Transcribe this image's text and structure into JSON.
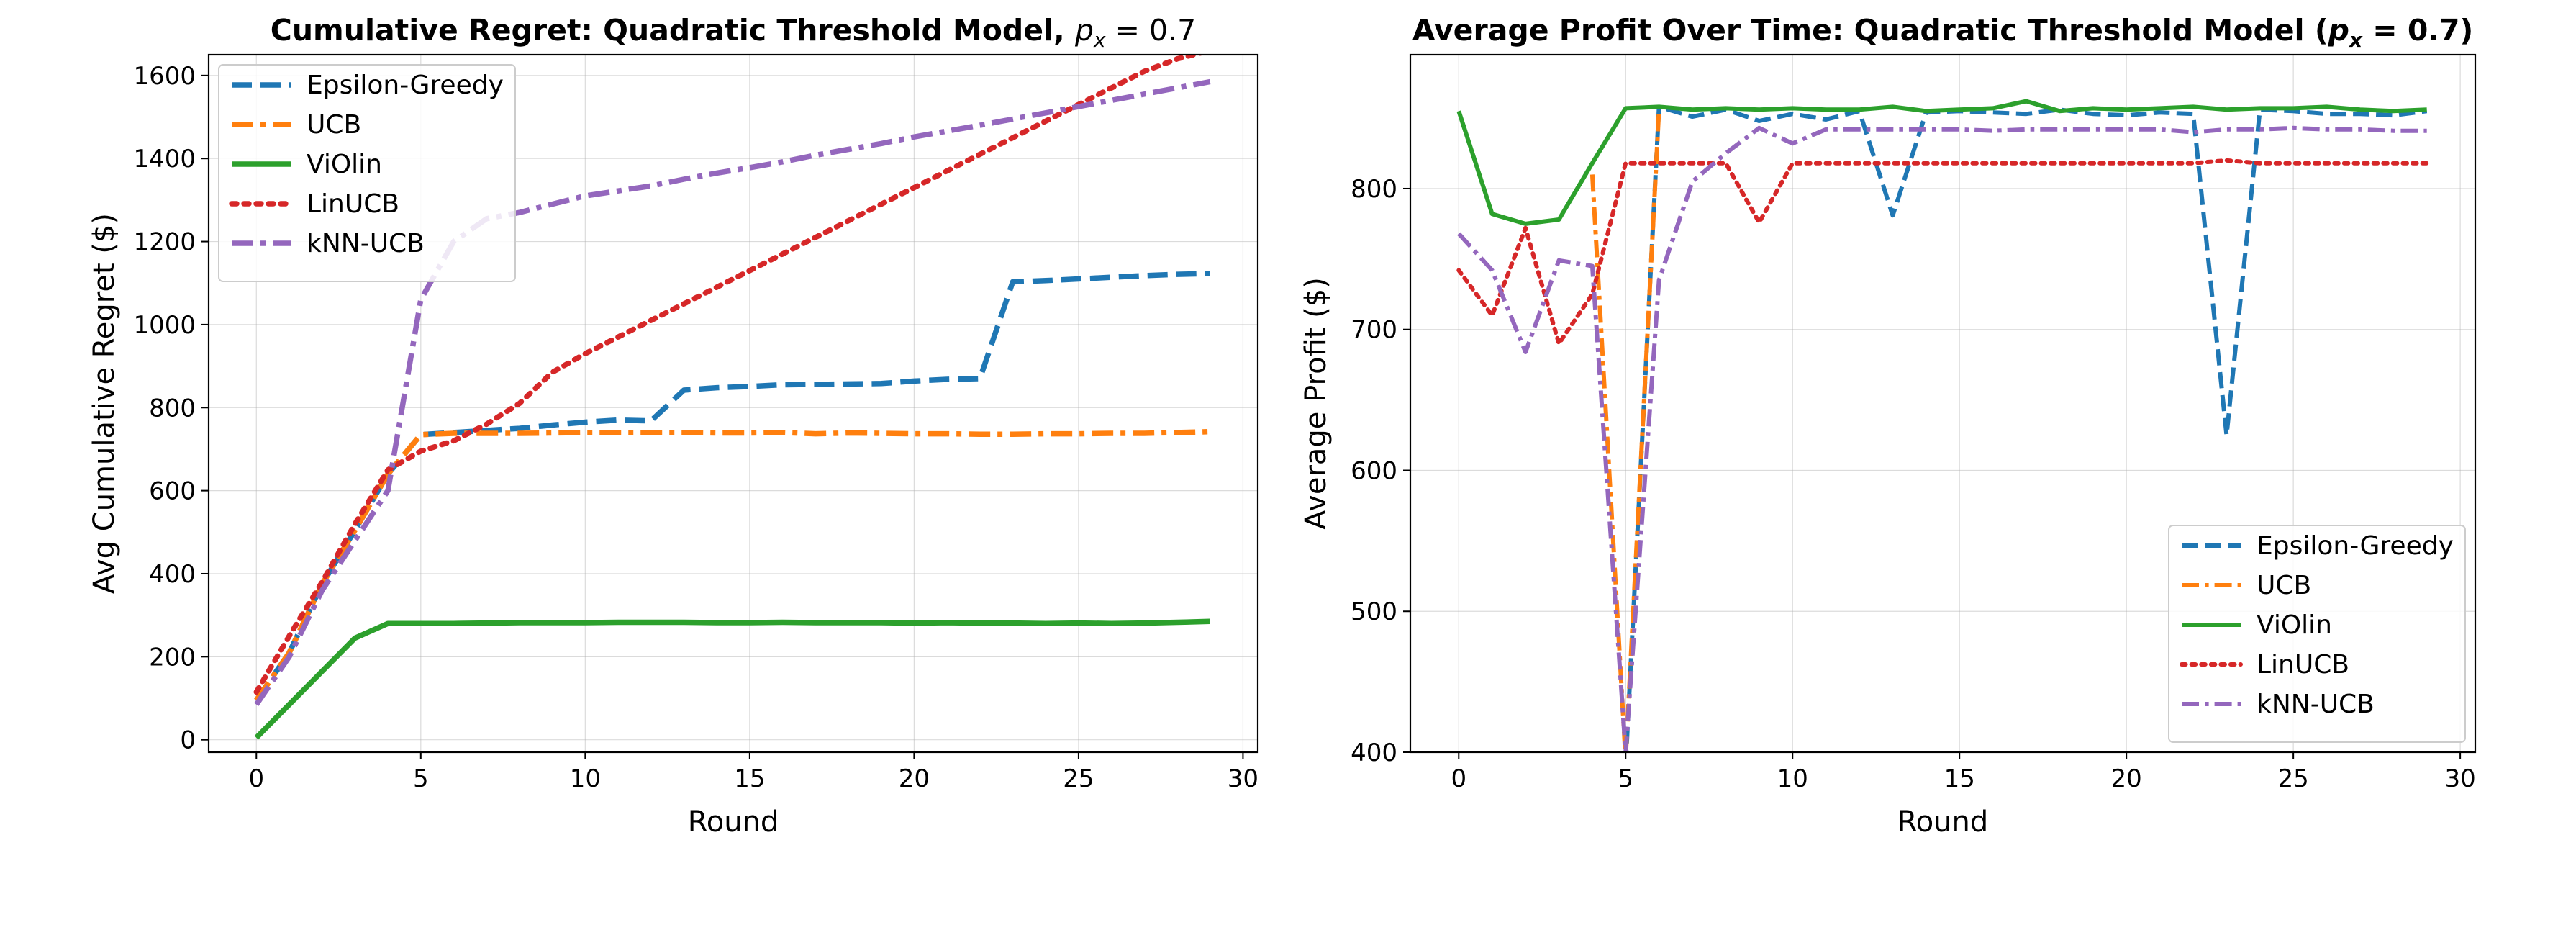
{
  "chart_data": [
    {
      "type": "line",
      "title": "Cumulative Regret: Quadratic Threshold Model, ",
      "title_math": "p",
      "title_math_sub": "x",
      "title_math_rest": " = 0.7",
      "xlabel": "Round",
      "ylabel": "Avg Cumulative Regret ($)",
      "xlim": [
        -1.45,
        30.45
      ],
      "ylim": [
        -30,
        1650
      ],
      "xticks": [
        0,
        5,
        10,
        15,
        20,
        25,
        30
      ],
      "yticks": [
        0,
        200,
        400,
        600,
        800,
        1000,
        1200,
        1400,
        1600
      ],
      "grid": true,
      "legend_position": "upper left",
      "x": [
        0,
        1,
        2,
        3,
        4,
        5,
        6,
        7,
        8,
        9,
        10,
        11,
        12,
        13,
        14,
        15,
        16,
        17,
        18,
        19,
        20,
        21,
        22,
        23,
        24,
        25,
        26,
        27,
        28,
        29
      ],
      "series": [
        {
          "name": "Epsilon-Greedy",
          "color": "#1f77b4",
          "dash": "dashed",
          "values": [
            95,
            210,
            375,
            505,
            640,
            735,
            740,
            745,
            750,
            758,
            765,
            770,
            768,
            842,
            848,
            851,
            855,
            856,
            857,
            858,
            864,
            868,
            870,
            1103,
            1106,
            1110,
            1114,
            1118,
            1121,
            1123
          ]
        },
        {
          "name": "UCB",
          "color": "#ff7f0e",
          "dash": "dashdot",
          "values": [
            95,
            210,
            375,
            505,
            640,
            735,
            738,
            738,
            738,
            739,
            740,
            740,
            740,
            740,
            739,
            739,
            740,
            737,
            739,
            738,
            737,
            737,
            736,
            736,
            737,
            737,
            738,
            738,
            740,
            742
          ]
        },
        {
          "name": "ViOlin",
          "color": "#2ca02c",
          "dash": "solid",
          "values": [
            5,
            85,
            165,
            245,
            280,
            280,
            280,
            281,
            282,
            282,
            282,
            283,
            283,
            283,
            282,
            282,
            283,
            282,
            282,
            282,
            281,
            282,
            281,
            281,
            280,
            281,
            280,
            281,
            283,
            285
          ]
        },
        {
          "name": "LinUCB",
          "color": "#d62728",
          "dash": "dotted",
          "values": [
            115,
            250,
            380,
            520,
            650,
            695,
            720,
            760,
            810,
            885,
            930,
            970,
            1010,
            1050,
            1090,
            1130,
            1170,
            1210,
            1250,
            1290,
            1330,
            1370,
            1410,
            1450,
            1490,
            1530,
            1570,
            1610,
            1640,
            1660
          ]
        },
        {
          "name": "kNN-UCB",
          "color": "#9467bd",
          "dash": "dashdot",
          "values": [
            85,
            200,
            360,
            480,
            600,
            1060,
            1200,
            1255,
            1270,
            1290,
            1310,
            1322,
            1334,
            1350,
            1365,
            1378,
            1392,
            1408,
            1422,
            1436,
            1452,
            1466,
            1480,
            1495,
            1510,
            1525,
            1540,
            1555,
            1570,
            1585
          ]
        }
      ]
    },
    {
      "type": "line",
      "title": "Average Profit Over Time: Quadratic Threshold Model (",
      "title_math": "p",
      "title_math_sub": "x",
      "title_math_rest": " = 0.7)",
      "xlabel": "Round",
      "ylabel": "Average Profit ($)",
      "xlim": [
        -1.45,
        30.45
      ],
      "ylim": [
        400,
        895
      ],
      "xticks": [
        0,
        5,
        10,
        15,
        20,
        25,
        30
      ],
      "yticks": [
        400,
        500,
        600,
        700,
        800
      ],
      "grid": true,
      "legend_position": "lower right",
      "x": [
        0,
        1,
        2,
        3,
        4,
        5,
        6,
        7,
        8,
        9,
        10,
        11,
        12,
        13,
        14,
        15,
        16,
        17,
        18,
        19,
        20,
        21,
        22,
        23,
        24,
        25,
        26,
        27,
        28,
        29
      ],
      "series": [
        {
          "name": "Epsilon-Greedy",
          "color": "#1f77b4",
          "dash": "dashed",
          "values": [
            null,
            null,
            null,
            null,
            null,
            390,
            858,
            851,
            856,
            848,
            853,
            849,
            855,
            781,
            854,
            855,
            854,
            853,
            856,
            853,
            852,
            854,
            853,
            625,
            856,
            855,
            853,
            853,
            852,
            855
          ]
        },
        {
          "name": "UCB",
          "color": "#ff7f0e",
          "dash": "dashdot",
          "values": [
            null,
            null,
            null,
            null,
            810,
            395,
            856,
            null,
            null,
            null,
            null,
            null,
            null,
            null,
            null,
            null,
            null,
            null,
            null,
            null,
            null,
            null,
            null,
            null,
            null,
            null,
            null,
            null,
            null,
            null
          ]
        },
        {
          "name": "ViOlin",
          "color": "#2ca02c",
          "dash": "solid",
          "values": [
            855,
            782,
            775,
            778,
            818,
            857,
            858,
            856,
            857,
            856,
            857,
            856,
            856,
            858,
            855,
            856,
            857,
            862,
            855,
            857,
            856,
            857,
            858,
            856,
            857,
            857,
            858,
            856,
            855,
            856
          ]
        },
        {
          "name": "LinUCB",
          "color": "#d62728",
          "dash": "dotted",
          "values": [
            742,
            710,
            772,
            690,
            725,
            818,
            818,
            818,
            818,
            776,
            818,
            818,
            818,
            818,
            818,
            818,
            818,
            818,
            818,
            818,
            818,
            818,
            818,
            820,
            818,
            818,
            818,
            818,
            818,
            818
          ]
        },
        {
          "name": "kNN-UCB",
          "color": "#9467bd",
          "dash": "dashdot",
          "values": [
            768,
            742,
            684,
            749,
            745,
            400,
            735,
            805,
            825,
            843,
            832,
            842,
            842,
            842,
            842,
            842,
            841,
            842,
            842,
            842,
            842,
            842,
            840,
            842,
            842,
            843,
            842,
            842,
            841,
            841
          ]
        }
      ]
    }
  ]
}
